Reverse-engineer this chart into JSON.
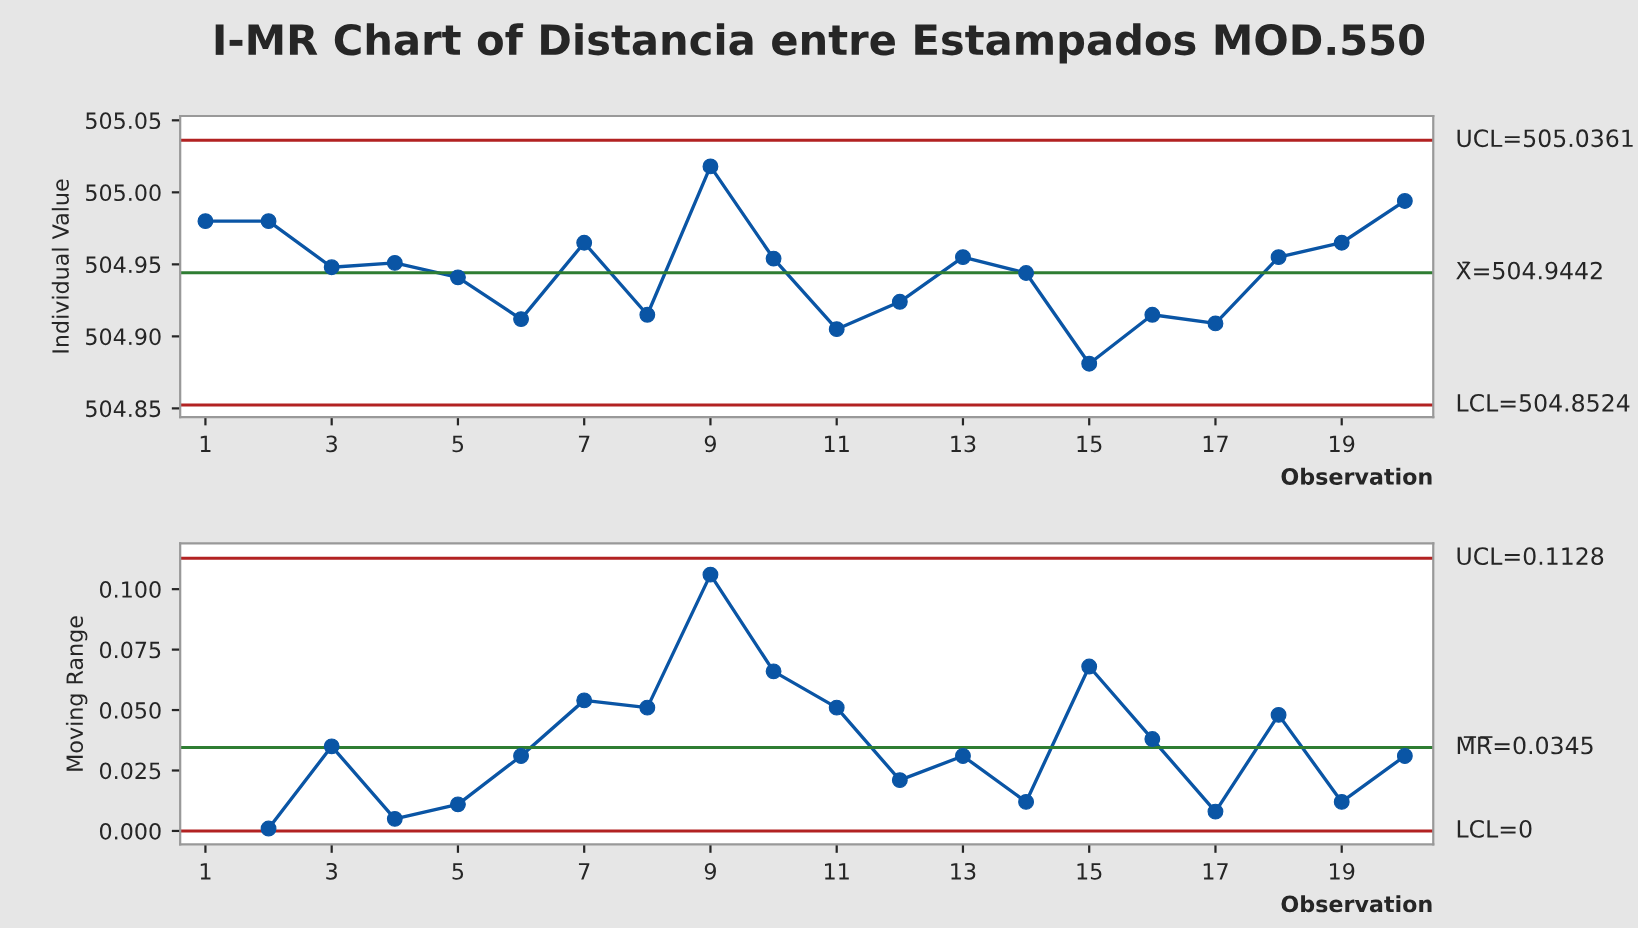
{
  "chart_data": [
    {
      "type": "line",
      "title": "I-MR Chart of Distancia entre Estampados MOD.550",
      "xlabel": "Observation",
      "ylabel": "Individual Value",
      "marker": "circle",
      "line_style": "solid",
      "grid": false,
      "legend": false,
      "x": [
        1,
        2,
        3,
        4,
        5,
        6,
        7,
        8,
        9,
        10,
        11,
        12,
        13,
        14,
        15,
        16,
        17,
        18,
        19,
        20
      ],
      "series": [
        {
          "color": "#0a55a5",
          "values": [
            504.98,
            504.98,
            504.948,
            504.951,
            504.941,
            504.912,
            504.965,
            504.915,
            505.018,
            504.954,
            504.905,
            504.924,
            504.955,
            504.944,
            504.881,
            504.915,
            504.909,
            504.955,
            504.965,
            504.994
          ]
        }
      ],
      "xlim": [
        0.6,
        20.45
      ],
      "xticks": [
        1,
        3,
        5,
        7,
        9,
        11,
        13,
        15,
        17,
        19
      ],
      "ylim": [
        504.844,
        505.053
      ],
      "yticks": [
        {
          "value": 504.85,
          "label": "504.85"
        },
        {
          "value": 504.9,
          "label": "504.90"
        },
        {
          "value": 504.95,
          "label": "504.95"
        },
        {
          "value": 505.0,
          "label": "505.00"
        },
        {
          "value": 505.05,
          "label": "505.05"
        }
      ],
      "ref_lines": [
        {
          "axis": "y",
          "value": 505.0361,
          "label": "UCL=505.0361",
          "color": "#b22222"
        },
        {
          "axis": "y",
          "value": 504.9442,
          "label": "X̄=504.9442",
          "color": "#2e7d32"
        },
        {
          "axis": "y",
          "value": 504.8524,
          "label": "LCL=504.8524",
          "color": "#b22222"
        }
      ]
    },
    {
      "type": "line",
      "xlabel": "Observation",
      "ylabel": "Moving Range",
      "marker": "circle",
      "line_style": "solid",
      "grid": false,
      "legend": false,
      "series": [
        {
          "color": "#0a55a5",
          "x": [
            2,
            3,
            4,
            5,
            6,
            7,
            8,
            9,
            10,
            11,
            12,
            13,
            14,
            15,
            16,
            17,
            18,
            19,
            20
          ],
          "values": [
            0.001,
            0.035,
            0.005,
            0.011,
            0.031,
            0.054,
            0.051,
            0.106,
            0.066,
            0.051,
            0.021,
            0.031,
            0.012,
            0.068,
            0.038,
            0.008,
            0.048,
            0.012,
            0.031
          ]
        }
      ],
      "xlim": [
        0.6,
        20.45
      ],
      "xticks": [
        1,
        3,
        5,
        7,
        9,
        11,
        13,
        15,
        17,
        19
      ],
      "ylim": [
        -0.0056,
        0.1189
      ],
      "yticks": [
        {
          "value": 0,
          "label": "0.000"
        },
        {
          "value": 0.025,
          "label": "0.025"
        },
        {
          "value": 0.05,
          "label": "0.050"
        },
        {
          "value": 0.075,
          "label": "0.075"
        },
        {
          "value": 0.1,
          "label": "0.100"
        }
      ],
      "ref_lines": [
        {
          "axis": "y",
          "value": 0.1128,
          "label": "UCL=0.1128",
          "color": "#b22222"
        },
        {
          "axis": "y",
          "value": 0.0345,
          "label": "M̅R̅=0.0345",
          "color": "#2e7d32"
        },
        {
          "axis": "y",
          "value": 0,
          "label": "LCL=0",
          "color": "#b22222"
        }
      ]
    }
  ]
}
